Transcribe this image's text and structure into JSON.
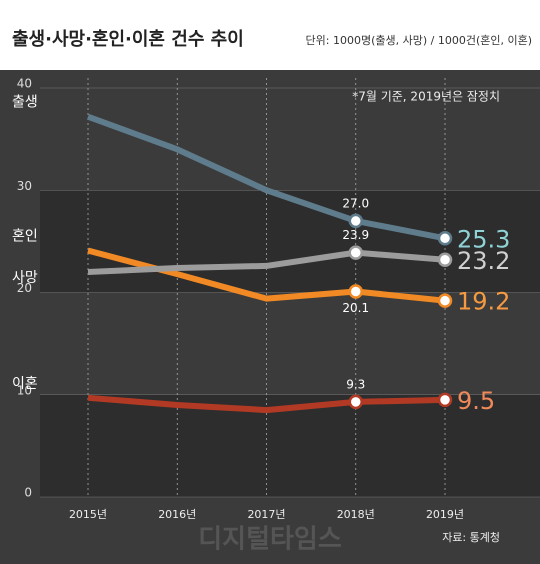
{
  "chart_data": {
    "type": "line",
    "title": "출생·사망·혼인·이혼 건수 추이",
    "subtitle": "단위: 1000명(출생, 사망) / 1000건(혼인, 이혼)",
    "note": "*7월 기준, 2019년은 잠정치",
    "source": "자료: 통계청",
    "watermark": "디지털타임스",
    "categories": [
      "2015년",
      "2016년",
      "2017년",
      "2018년",
      "2019년"
    ],
    "ylim": [
      0,
      40
    ],
    "yticks": [
      0,
      10,
      20,
      30,
      40
    ],
    "series": [
      {
        "name": "출생",
        "color": "#5f7c8c",
        "label_color": "#8fd3d6",
        "values": [
          37.2,
          34.0,
          30.0,
          27.0,
          25.3
        ],
        "value_labels": [
          null,
          null,
          null,
          "27.0",
          "25.3"
        ]
      },
      {
        "name": "혼인",
        "color": "#f18a24",
        "label_color": "#f59a42",
        "values": [
          24.1,
          21.8,
          19.4,
          20.1,
          19.2
        ],
        "value_labels": [
          null,
          null,
          null,
          "20.1",
          "19.2"
        ]
      },
      {
        "name": "사망",
        "color": "#9c9c9c",
        "label_color": "#d0d0d0",
        "values": [
          22.0,
          22.4,
          22.6,
          23.9,
          23.2
        ],
        "value_labels": [
          null,
          null,
          null,
          "23.9",
          "23.2"
        ]
      },
      {
        "name": "이혼",
        "color": "#b23a25",
        "label_color": "#f08a5a",
        "values": [
          9.7,
          9.0,
          8.5,
          9.3,
          9.5
        ],
        "value_labels": [
          null,
          null,
          null,
          "9.3",
          "9.5"
        ]
      }
    ]
  }
}
